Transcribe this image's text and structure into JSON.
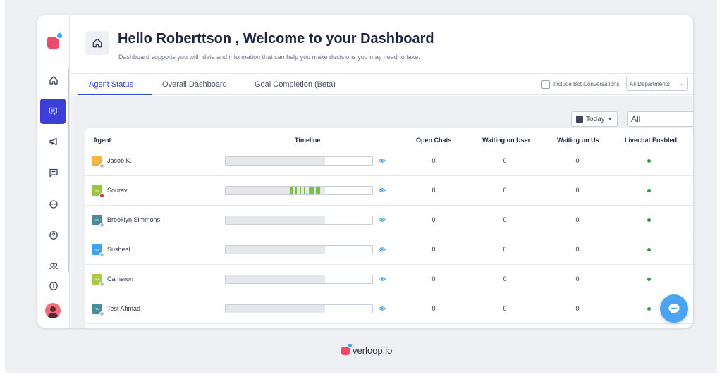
{
  "header": {
    "title": "Hello Roberttson , Welcome to your Dashboard",
    "subtitle": "Dashboard supports you with data and information that can help you make decisions you may need to take."
  },
  "tabs": [
    {
      "label": "Agent Status",
      "active": true
    },
    {
      "label": "Overall Dashboard",
      "active": false
    },
    {
      "label": "Goal Completion (Beta)",
      "active": false
    }
  ],
  "filters": {
    "include_bot_label": "Include Bot Conversations",
    "include_bot_checked": false,
    "department": "All Departments",
    "date_range": "Today",
    "agent_filter": "All"
  },
  "table": {
    "columns": [
      "Agent",
      "Timeline",
      "Open Chats",
      "Waiting on User",
      "Waiting on Us",
      "Livechat Enabled"
    ],
    "rows": [
      {
        "avatar_text": "SR",
        "avatar_color": "#f3b33d",
        "status_color": "#b9bfcc",
        "name": "Jacob K.",
        "open_chats": "0",
        "waiting_on_user": "0",
        "waiting_on_us": "0",
        "livechat_enabled": true
      },
      {
        "avatar_text": "SR",
        "avatar_color": "#9bc53d",
        "status_color": "#d0433a",
        "name": "Sourav",
        "open_chats": "0",
        "waiting_on_user": "0",
        "waiting_on_us": "0",
        "livechat_enabled": true
      },
      {
        "avatar_text": "SR",
        "avatar_color": "#4a8c9a",
        "status_color": "#b9bfcc",
        "name": "Brooklyn Simmons",
        "open_chats": "0",
        "waiting_on_user": "0",
        "waiting_on_us": "0",
        "livechat_enabled": true
      },
      {
        "avatar_text": "SR",
        "avatar_color": "#3fa2f5",
        "status_color": "#b9bfcc",
        "name": "Susheel",
        "open_chats": "0",
        "waiting_on_user": "0",
        "waiting_on_us": "0",
        "livechat_enabled": true
      },
      {
        "avatar_text": "SR",
        "avatar_color": "#a9c94a",
        "status_color": "#b9bfcc",
        "name": "Cameron",
        "open_chats": "0",
        "waiting_on_user": "0",
        "waiting_on_us": "0",
        "livechat_enabled": true
      },
      {
        "avatar_text": "TA",
        "avatar_color": "#4a8c9a",
        "status_color": "#b9bfcc",
        "name": "Test Ahmad",
        "open_chats": "0",
        "waiting_on_user": "0",
        "waiting_on_us": "0",
        "livechat_enabled": true
      }
    ]
  },
  "footer": {
    "brand": "verloop.io"
  },
  "colors": {
    "accent": "#2d46d6",
    "sidebar_active": "#3b3fd8",
    "highlight": "#e0352b",
    "brand": "#ef4a6b",
    "fab": "#4aa4f2"
  }
}
